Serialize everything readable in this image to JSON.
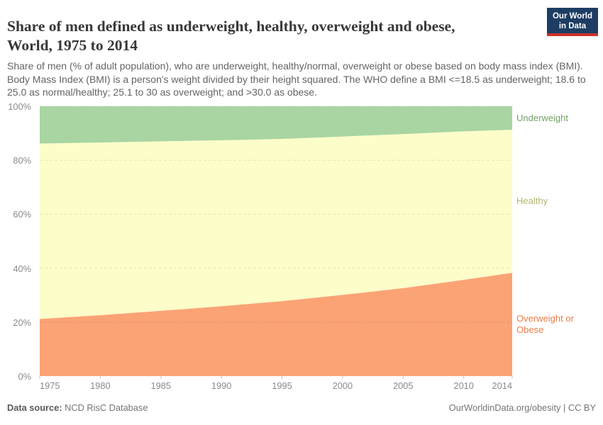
{
  "header": {
    "title_line1": "Share of men defined as underweight, healthy, overweight and obese,",
    "title_line2": "World, 1975 to 2014",
    "subtitle": "Share of men (% of adult population), who are underweight, healthy/normal, overweight or obese based on body mass index (BMI). Body Mass Index (BMI) is a person's weight divided by their height squared. The WHO define a BMI <=18.5 as underweight; 18.6 to 25.0 as normal/healthy; 25.1 to 30 as overweight; and >30.0 as obese.",
    "logo": {
      "line1": "Our World",
      "line2": "in Data",
      "bg_color": "#1d3d63",
      "stripe_color": "#cf312b"
    }
  },
  "chart_data": {
    "type": "area",
    "stacked": true,
    "title": "Share of men defined as underweight, healthy, overweight and obese, World, 1975 to 2014",
    "x": [
      1975,
      1980,
      1985,
      1990,
      1995,
      2000,
      2005,
      2010,
      2014
    ],
    "xlabel": "",
    "ylabel": "",
    "ylim": [
      0,
      100
    ],
    "grid": "horizontal-dashed",
    "legend_position": "right-inline",
    "series": [
      {
        "name": "Overweight or Obese",
        "fill": "#fba375",
        "label_color": "#ee7a48",
        "values": [
          21.2,
          22.6,
          24.2,
          25.9,
          27.8,
          30.1,
          32.6,
          35.7,
          38.3
        ]
      },
      {
        "name": "Healthy",
        "fill": "#fcfdc9",
        "label_color": "#b6b572",
        "values": [
          65.0,
          64.0,
          62.8,
          61.5,
          60.1,
          58.7,
          57.1,
          55.0,
          53.0
        ]
      },
      {
        "name": "Underweight",
        "fill": "#a8d5a2",
        "label_color": "#71a364",
        "values": [
          13.8,
          13.4,
          13.0,
          12.6,
          12.1,
          11.2,
          10.3,
          9.3,
          8.7
        ]
      }
    ],
    "yticks": [
      {
        "value": 0,
        "label": "0%"
      },
      {
        "value": 20,
        "label": "20%"
      },
      {
        "value": 40,
        "label": "40%"
      },
      {
        "value": 60,
        "label": "60%"
      },
      {
        "value": 80,
        "label": "80%"
      },
      {
        "value": 100,
        "label": "100%"
      }
    ],
    "xticks": [
      {
        "value": 1975,
        "label": "1975"
      },
      {
        "value": 1980,
        "label": "1980"
      },
      {
        "value": 1985,
        "label": "1985"
      },
      {
        "value": 1990,
        "label": "1990"
      },
      {
        "value": 1995,
        "label": "1995"
      },
      {
        "value": 2000,
        "label": "2000"
      },
      {
        "value": 2005,
        "label": "2005"
      },
      {
        "value": 2010,
        "label": "2010"
      },
      {
        "value": 2014,
        "label": "2014"
      }
    ]
  },
  "footer": {
    "source_label": "Data source:",
    "source_value": "NCD RisC Database",
    "credit": "OurWorldinData.org/obesity | CC BY"
  }
}
